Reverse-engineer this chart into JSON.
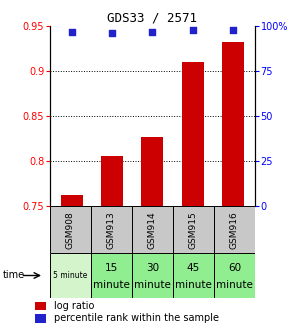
{
  "title": "GDS33 / 2571",
  "samples": [
    "GSM908",
    "GSM913",
    "GSM914",
    "GSM915",
    "GSM916"
  ],
  "time_labels_line1": [
    "5 minute",
    "15",
    "30",
    "45",
    "60"
  ],
  "time_labels_line2": [
    "",
    "minute",
    "minute",
    "minute",
    "minute"
  ],
  "time_colors": [
    "#d4f5cc",
    "#90ee90",
    "#90ee90",
    "#90ee90",
    "#90ee90"
  ],
  "log_ratio": [
    0.762,
    0.806,
    0.827,
    0.91,
    0.932
  ],
  "percentile_rank_pct": [
    97,
    96,
    97,
    98,
    98
  ],
  "ylim_left": [
    0.75,
    0.95
  ],
  "ylim_right": [
    0,
    100
  ],
  "yticks_left": [
    0.75,
    0.8,
    0.85,
    0.9,
    0.95
  ],
  "yticks_right": [
    0,
    25,
    50,
    75,
    100
  ],
  "bar_color": "#cc0000",
  "dot_color": "#2222cc",
  "background_color": "#ffffff",
  "header_bg": "#c8c8c8",
  "legend_red": "log ratio",
  "legend_blue": "percentile rank within the sample",
  "time_row_label": "time"
}
